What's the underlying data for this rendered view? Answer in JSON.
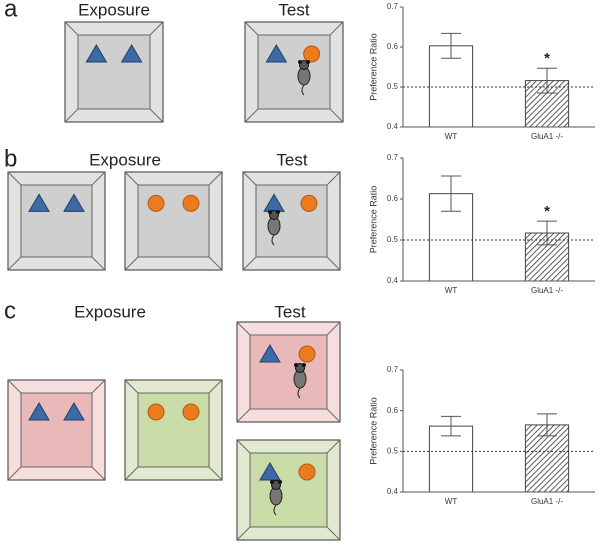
{
  "panels": [
    {
      "label": "a",
      "exposure": "Exposure",
      "test": "Test"
    },
    {
      "label": "b",
      "exposure": "Exposure",
      "test": "Test"
    },
    {
      "label": "c",
      "exposure": "Exposure",
      "test": "Test"
    }
  ],
  "chart_data": [
    {
      "type": "bar",
      "ylabel": "Preference Ratio",
      "categories": [
        "WT",
        "GluA1 -/-"
      ],
      "values": [
        0.603,
        0.516
      ],
      "errors": [
        0.031,
        0.031
      ],
      "significance": [
        null,
        "*"
      ],
      "patterns": [
        "solid",
        "hatch"
      ],
      "ylim": [
        0.4,
        0.7
      ],
      "yticks": [
        0.4,
        0.5,
        0.6,
        0.7
      ],
      "reference_line": 0.5
    },
    {
      "type": "bar",
      "ylabel": "Preference Ratio",
      "categories": [
        "WT",
        "GluA1 -/-"
      ],
      "values": [
        0.613,
        0.517
      ],
      "errors": [
        0.043,
        0.029
      ],
      "significance": [
        null,
        "*"
      ],
      "patterns": [
        "solid",
        "hatch"
      ],
      "ylim": [
        0.4,
        0.7
      ],
      "yticks": [
        0.4,
        0.5,
        0.6,
        0.7
      ],
      "reference_line": 0.5
    },
    {
      "type": "bar",
      "ylabel": "Preference Ratio",
      "categories": [
        "WT",
        "GluA1 -/-"
      ],
      "values": [
        0.562,
        0.565
      ],
      "errors": [
        0.024,
        0.027
      ],
      "significance": [
        null,
        null
      ],
      "patterns": [
        "solid",
        "hatch"
      ],
      "ylim": [
        0.4,
        0.7
      ],
      "yticks": [
        0.4,
        0.5,
        0.6,
        0.7
      ],
      "reference_line": 0.5
    }
  ]
}
